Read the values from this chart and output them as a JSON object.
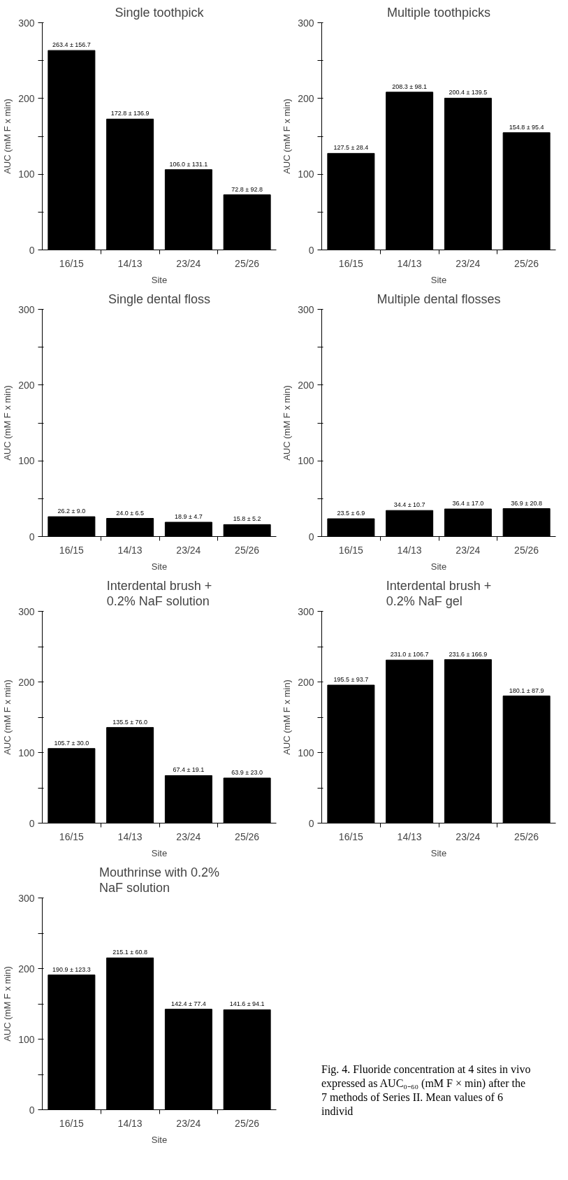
{
  "chart_data": [
    {
      "type": "bar",
      "title": "Single toothpick",
      "xlabel": "Site",
      "ylabel": "AUC (mM F x min)",
      "categories": [
        "16/15",
        "14/13",
        "23/24",
        "25/26"
      ],
      "values": [
        263.4,
        172.8,
        106.0,
        72.8
      ],
      "value_labels": [
        "263.4 ± 156.7",
        "172.8 ± 136.9",
        "106.0 ± 131.1",
        "72.8 ± 92.8"
      ],
      "color": "#000000",
      "ylim": [
        0,
        300
      ],
      "yticks": [
        0,
        {
          "value": 50,
          "label": null
        },
        100,
        {
          "value": 150,
          "label": null
        },
        200,
        {
          "value": 250,
          "label": null
        },
        300
      ]
    },
    {
      "type": "bar",
      "title": "Multiple toothpicks",
      "xlabel": "Site",
      "ylabel": "AUC (mM F x min)",
      "categories": [
        "16/15",
        "14/13",
        "23/24",
        "25/26"
      ],
      "values": [
        127.5,
        208.3,
        200.4,
        154.8
      ],
      "value_labels": [
        "127.5 ± 28.4",
        "208.3 ± 98.1",
        "200.4 ± 139.5",
        "154.8 ± 95.4"
      ],
      "color": "#000000",
      "ylim": [
        0,
        300
      ],
      "yticks": [
        0,
        {
          "value": 50,
          "label": null
        },
        100,
        {
          "value": 150,
          "label": null
        },
        200,
        {
          "value": 250,
          "label": null
        },
        300
      ]
    },
    {
      "type": "bar",
      "title": "Single dental floss",
      "xlabel": "Site",
      "ylabel": "AUC (mM F x min)",
      "categories": [
        "16/15",
        "14/13",
        "23/24",
        "25/26"
      ],
      "values": [
        26.2,
        24.0,
        18.9,
        15.8
      ],
      "value_labels": [
        "26.2 ± 9.0",
        "24.0 ± 6.5",
        "18.9 ± 4.7",
        "15.8 ± 5.2"
      ],
      "color": "#000000",
      "ylim": [
        0,
        300
      ],
      "yticks": [
        0,
        {
          "value": 50,
          "label": null
        },
        100,
        {
          "value": 150,
          "label": null
        },
        200,
        {
          "value": 250,
          "label": null
        },
        300
      ]
    },
    {
      "type": "bar",
      "title": "Multiple dental flosses",
      "xlabel": "Site",
      "ylabel": "AUC (mM F x min)",
      "categories": [
        "16/15",
        "14/13",
        "23/24",
        "25/26"
      ],
      "values": [
        23.5,
        34.4,
        36.4,
        36.9
      ],
      "value_labels": [
        "23.5 ± 6.9",
        "34.4 ± 10.7",
        "36.4 ± 17.0",
        "36.9 ± 20.8"
      ],
      "color": "#000000",
      "ylim": [
        0,
        300
      ],
      "yticks": [
        0,
        {
          "value": 50,
          "label": null
        },
        100,
        {
          "value": 150,
          "label": null
        },
        200,
        {
          "value": 250,
          "label": null
        },
        300
      ]
    },
    {
      "type": "bar",
      "title": "Interdental brush +\n0.2% NaF solution",
      "xlabel": "Site",
      "ylabel": "AUC (mM F x min)",
      "categories": [
        "16/15",
        "14/13",
        "23/24",
        "25/26"
      ],
      "values": [
        105.7,
        135.5,
        67.4,
        63.9
      ],
      "value_labels": [
        "105.7 ± 30.0",
        "135.5 ± 76.0",
        "67.4 ± 19.1",
        "63.9 ± 23.0"
      ],
      "color": "#000000",
      "ylim": [
        0,
        300
      ],
      "yticks": [
        0,
        {
          "value": 50,
          "label": null
        },
        100,
        {
          "value": 150,
          "label": null
        },
        200,
        {
          "value": 250,
          "label": null
        },
        300
      ]
    },
    {
      "type": "bar",
      "title": "Interdental brush +\n0.2% NaF gel",
      "xlabel": "Site",
      "ylabel": "AUC (mM F x min)",
      "categories": [
        "16/15",
        "14/13",
        "23/24",
        "25/26"
      ],
      "values": [
        195.5,
        231.0,
        231.6,
        180.1
      ],
      "value_labels": [
        "195.5 ± 93.7",
        "231.0 ± 106.7",
        "231.6 ± 166.9",
        "180.1 ± 87.9"
      ],
      "color": "#000000",
      "ylim": [
        0,
        300
      ],
      "yticks": [
        0,
        {
          "value": 50,
          "label": null
        },
        100,
        {
          "value": 150,
          "label": null
        },
        200,
        {
          "value": 250,
          "label": null
        },
        300
      ]
    },
    {
      "type": "bar",
      "title": "Mouthrinse with 0.2%\nNaF solution",
      "xlabel": "Site",
      "ylabel": "AUC (mM F x min)",
      "categories": [
        "16/15",
        "14/13",
        "23/24",
        "25/26"
      ],
      "values": [
        190.9,
        215.1,
        142.4,
        141.6
      ],
      "value_labels": [
        "190.9 ± 123.3",
        "215.1 ± 60.8",
        "142.4 ± 77.4",
        "141.6 ± 94.1"
      ],
      "color": "#000000",
      "ylim": [
        0,
        300
      ],
      "yticks": [
        0,
        {
          "value": 50,
          "label": null
        },
        100,
        {
          "value": 150,
          "label": null
        },
        200,
        {
          "value": 250,
          "label": null
        },
        300
      ],
      "annotations": [
        "Fig. 4. Fluoride concentration at 4 sites in vivo expressed as AUC₀₋₆₀ (mM F × min) after the 7 methods of Series II. Mean values of 6 individ"
      ]
    }
  ]
}
